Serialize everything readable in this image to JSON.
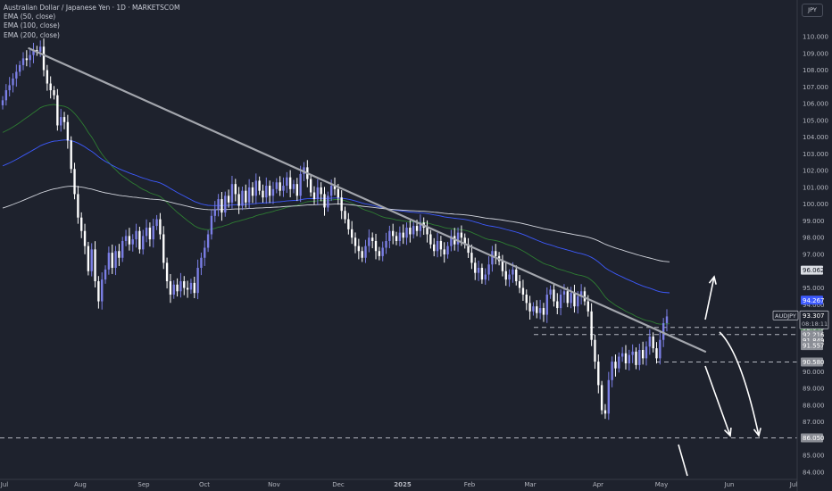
{
  "chart_data": {
    "type": "candlestick",
    "title": "Australian Dollar / Japanese Yen · 1D · MARKETSCOM",
    "symbol": "AUDJPY",
    "currency": "JPY",
    "indicators": [
      "EMA (50, close)",
      "EMA (100, close)",
      "EMA (200, close)"
    ],
    "x_ticks": [
      "Jul",
      "Aug",
      "Sep",
      "Oct",
      "Nov",
      "Dec",
      "2025",
      "Feb",
      "Mar",
      "Apr",
      "May",
      "Jun",
      "Jul"
    ],
    "y_ticks": [
      "110.000",
      "109.000",
      "108.000",
      "107.000",
      "106.000",
      "105.000",
      "104.000",
      "103.000",
      "102.000",
      "101.000",
      "100.000",
      "99.000",
      "98.000",
      "97.000",
      "95.000",
      "94.000",
      "90.000",
      "89.000",
      "88.000",
      "87.000",
      "85.000",
      "84.000"
    ],
    "ylim": [
      83.7,
      110.4
    ],
    "price_labels": [
      {
        "value": 96.062,
        "text": "96.062",
        "color": "#dadde3",
        "textColor": "#131722"
      },
      {
        "value": 94.267,
        "text": "94.267",
        "color": "#3d5afe",
        "textColor": "#ffffff"
      },
      {
        "value": 92.643,
        "text": "92.643",
        "color": "#2e7d32",
        "textColor": "#ffffff"
      },
      {
        "value": 92.216,
        "text": "92.216",
        "color": "#8a8d95",
        "textColor": "#ffffff"
      },
      {
        "value": 91.849,
        "text": "91.849",
        "color": "#8a8d95",
        "textColor": "#ffffff"
      },
      {
        "value": 91.557,
        "text": "91.557",
        "color": "#8a8d95",
        "textColor": "#ffffff"
      },
      {
        "value": 90.58,
        "text": "90.580",
        "color": "#8a8d95",
        "textColor": "#ffffff"
      },
      {
        "value": 86.05,
        "text": "86.050",
        "color": "#8a8d95",
        "textColor": "#ffffff"
      }
    ],
    "last_price": {
      "value": 93.307,
      "text": "93.307",
      "countdown": "08:18:11",
      "symbol_label": "AUDJPY"
    },
    "horizontal_levels": [
      92.643,
      92.216,
      90.58,
      86.05
    ],
    "trendline": {
      "from": {
        "x": "2024-07-11",
        "y": 109.3
      },
      "to": {
        "x": "2025-05-21",
        "y": 91.2
      }
    },
    "closes": [
      106.2,
      106.8,
      107.1,
      107.5,
      107.9,
      108.3,
      108.7,
      108.6,
      108.9,
      109.2,
      109.1,
      109.4,
      108.0,
      107.2,
      106.8,
      106.5,
      104.7,
      105.2,
      104.9,
      103.8,
      102.1,
      100.6,
      99.2,
      98.4,
      97.5,
      96.0,
      97.3,
      95.4,
      94.2,
      95.5,
      96.1,
      97.1,
      96.2,
      97.2,
      96.8,
      97.8,
      98.1,
      97.6,
      97.9,
      98.4,
      97.3,
      98.1,
      98.6,
      97.9,
      98.7,
      99.1,
      98.2,
      96.5,
      95.4,
      94.6,
      95.2,
      94.8,
      95.4,
      95.0,
      94.9,
      95.3,
      94.7,
      96.2,
      96.8,
      97.4,
      98.2,
      99.3,
      99.7,
      100.3,
      99.5,
      100.5,
      100.1,
      101.2,
      100.6,
      99.9,
      100.8,
      100.1,
      101.0,
      100.5,
      101.4,
      100.8,
      100.4,
      101.1,
      100.5,
      100.9,
      101.3,
      100.8,
      101.1,
      101.6,
      100.9,
      101.2,
      100.5,
      101.8,
      102.2,
      101.5,
      100.7,
      100.3,
      101.0,
      100.6,
      99.8,
      100.5,
      101.1,
      100.9,
      100.4,
      99.6,
      99.1,
      98.5,
      98.0,
      97.5,
      97.2,
      96.8,
      97.5,
      98.0,
      97.8,
      97.2,
      96.9,
      97.4,
      97.8,
      98.4,
      98.1,
      97.8,
      98.3,
      98.0,
      98.6,
      98.2,
      98.7,
      98.4,
      98.9,
      98.6,
      98.2,
      97.6,
      97.2,
      97.8,
      97.3,
      97.0,
      97.5,
      98.1,
      97.6,
      98.3,
      98.0,
      97.6,
      97.1,
      96.5,
      95.9,
      96.2,
      95.5,
      95.8,
      96.4,
      97.2,
      96.9,
      96.6,
      96.0,
      95.5,
      95.8,
      96.1,
      95.4,
      95.0,
      94.6,
      94.1,
      93.6,
      93.9,
      93.5,
      93.8,
      93.4,
      94.6,
      94.9,
      94.2,
      93.8,
      94.6,
      94.8,
      94.1,
      94.7,
      93.9,
      94.5,
      94.8,
      94.2,
      93.6,
      91.9,
      90.6,
      89.2,
      87.7,
      87.5,
      89.5,
      90.6,
      90.2,
      90.9,
      91.1,
      90.5,
      91.0,
      91.2,
      90.4,
      91.3,
      90.8,
      91.5,
      92.1,
      91.4,
      90.8,
      91.9,
      92.9,
      93.3
    ]
  }
}
